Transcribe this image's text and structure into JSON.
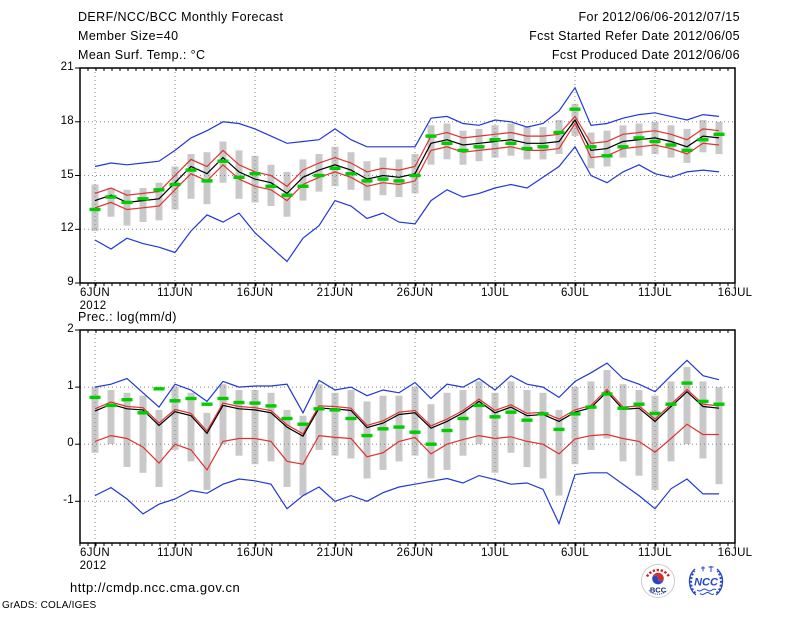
{
  "header": {
    "title": "DERF/NCC/BCC Monthly Forecast",
    "member_size": "Member Size=40",
    "for_range": "For 2012/06/06-2012/07/15",
    "fcst_started": "Fcst Started Refer Date 2012/06/05",
    "fcst_produced": "Fcst Produced Date 2012/06/06"
  },
  "footer": {
    "url": "http://cmdp.ncc.cma.gov.cn",
    "grads_credit": "GrADS: COLA/IGES",
    "logos": {
      "bcc": "BCC",
      "ncc": "NCC"
    }
  },
  "colors": {
    "mean_line": "#000000",
    "spread_line": "#e03232",
    "extreme_line": "#2138d6",
    "obs_dash": "#00cc00",
    "member_bar": "#c9c9c9",
    "grid_dots": "#888888",
    "logo_red": "#cc2222",
    "logo_blue": "#2747c4",
    "logo_navy": "#15267b"
  },
  "chart_data": [
    {
      "type": "line",
      "name": "surface-temperature",
      "title": "Mean Surf. Temp.: °C",
      "x_tick_labels": [
        "6JUN",
        "11JUN",
        "16JUN",
        "21JUN",
        "26JUN",
        "1JUL",
        "6JUL",
        "11JUL",
        "16JUL"
      ],
      "x_year_label": "2012",
      "ytick_values": [
        21,
        18,
        15,
        12,
        9
      ],
      "ytick_labels": [
        "21",
        "18",
        "15",
        "12",
        "9"
      ],
      "ylim": [
        9,
        21
      ],
      "grid": "dotted",
      "legend": "none",
      "dates": [
        "6JUN",
        "7JUN",
        "8JUN",
        "9JUN",
        "10JUN",
        "11JUN",
        "12JUN",
        "13JUN",
        "14JUN",
        "15JUN",
        "16JUN",
        "17JUN",
        "18JUN",
        "19JUN",
        "20JUN",
        "21JUN",
        "22JUN",
        "23JUN",
        "24JUN",
        "25JUN",
        "26JUN",
        "27JUN",
        "28JUN",
        "29JUN",
        "30JUN",
        "1JUL",
        "2JUL",
        "3JUL",
        "4JUL",
        "5JUL",
        "6JUL",
        "7JUL",
        "8JUL",
        "9JUL",
        "10JUL",
        "11JUL",
        "12JUL",
        "13JUL",
        "14JUL",
        "15JUL"
      ],
      "series": [
        {
          "name": "ensemble-max",
          "color": "blue",
          "values": [
            15.5,
            15.7,
            15.6,
            15.7,
            15.8,
            16.4,
            17.1,
            17.5,
            18.0,
            17.9,
            17.6,
            17.2,
            16.8,
            16.9,
            17.0,
            17.6,
            17.0,
            16.6,
            16.6,
            16.6,
            16.6,
            18.2,
            18.3,
            17.9,
            17.8,
            18.1,
            18.0,
            17.7,
            17.9,
            18.6,
            19.9,
            17.8,
            17.9,
            18.2,
            18.4,
            18.5,
            18.3,
            18.1,
            18.4,
            18.3
          ]
        },
        {
          "name": "ensemble-min",
          "color": "blue",
          "values": [
            11.4,
            10.9,
            11.5,
            11.2,
            11.0,
            10.7,
            11.9,
            12.8,
            12.4,
            12.9,
            11.8,
            11.0,
            10.2,
            11.5,
            12.2,
            13.6,
            13.3,
            12.6,
            12.9,
            12.4,
            12.3,
            13.6,
            14.2,
            13.8,
            14.0,
            14.3,
            14.5,
            14.3,
            14.9,
            15.5,
            16.6,
            15.0,
            14.6,
            15.2,
            15.6,
            15.1,
            14.9,
            15.2,
            15.3,
            15.2
          ]
        },
        {
          "name": "upper-spread",
          "color": "red",
          "values": [
            14.0,
            14.3,
            13.9,
            14.0,
            14.1,
            15.0,
            15.9,
            15.5,
            16.4,
            15.6,
            15.2,
            15.0,
            14.4,
            15.3,
            15.7,
            16.0,
            15.7,
            15.2,
            15.4,
            15.3,
            15.5,
            17.2,
            17.4,
            17.1,
            17.2,
            17.3,
            17.4,
            17.2,
            17.2,
            17.3,
            18.3,
            16.8,
            16.9,
            17.3,
            17.4,
            17.5,
            17.3,
            17.0,
            17.6,
            17.5
          ]
        },
        {
          "name": "lower-spread",
          "color": "red",
          "values": [
            13.2,
            13.5,
            13.1,
            13.2,
            13.3,
            14.2,
            15.1,
            14.7,
            15.6,
            14.8,
            14.4,
            14.2,
            13.6,
            14.5,
            14.9,
            15.2,
            14.9,
            14.4,
            14.6,
            14.5,
            14.7,
            16.4,
            16.6,
            16.3,
            16.4,
            16.5,
            16.6,
            16.4,
            16.4,
            16.5,
            17.9,
            16.0,
            16.1,
            16.5,
            16.6,
            16.7,
            16.5,
            16.2,
            16.8,
            16.7
          ]
        },
        {
          "name": "ensemble-mean",
          "color": "black",
          "values": [
            13.6,
            13.9,
            13.5,
            13.6,
            13.7,
            14.6,
            15.5,
            15.1,
            16.0,
            15.2,
            14.8,
            14.6,
            14.0,
            14.9,
            15.3,
            15.6,
            15.3,
            14.8,
            15.0,
            14.9,
            15.1,
            16.8,
            17.0,
            16.7,
            16.8,
            16.9,
            17.0,
            16.8,
            16.8,
            16.9,
            18.1,
            16.4,
            16.5,
            16.9,
            17.0,
            17.1,
            16.9,
            16.6,
            17.2,
            17.1
          ]
        },
        {
          "name": "green-dash-marker",
          "color": "green",
          "style": "dash-markers",
          "values": [
            13.1,
            13.8,
            13.5,
            13.7,
            14.2,
            14.5,
            15.3,
            14.7,
            15.8,
            14.9,
            15.1,
            14.4,
            13.9,
            14.4,
            15.0,
            15.4,
            15.1,
            14.7,
            14.8,
            14.7,
            15.0,
            17.2,
            16.8,
            16.4,
            16.6,
            17.0,
            16.8,
            16.5,
            16.6,
            17.4,
            18.7,
            16.6,
            16.1,
            16.6,
            17.1,
            16.9,
            16.7,
            16.4,
            17.0,
            17.3
          ]
        }
      ],
      "bars": {
        "name": "member-spread",
        "low": [
          11.9,
          12.7,
          12.2,
          12.4,
          12.5,
          13.1,
          13.7,
          13.4,
          14.6,
          13.7,
          13.5,
          13.3,
          12.7,
          13.6,
          14.1,
          14.4,
          14.2,
          13.6,
          13.9,
          13.8,
          14.0,
          15.6,
          15.9,
          15.6,
          15.8,
          16.0,
          16.1,
          15.9,
          15.9,
          16.2,
          17.2,
          15.4,
          15.5,
          16.0,
          16.1,
          16.2,
          16.0,
          15.7,
          16.3,
          16.2
        ],
        "high": [
          14.5,
          14.3,
          14.2,
          14.3,
          14.6,
          15.5,
          16.2,
          16.3,
          16.9,
          16.4,
          16.1,
          15.6,
          15.2,
          15.9,
          16.2,
          16.6,
          16.3,
          15.8,
          16.0,
          15.9,
          16.2,
          17.8,
          17.9,
          17.5,
          17.6,
          17.8,
          17.9,
          17.7,
          17.7,
          18.1,
          19.0,
          17.4,
          17.5,
          17.8,
          17.9,
          18.0,
          17.8,
          17.6,
          18.1,
          18.0
        ]
      }
    },
    {
      "type": "line",
      "name": "precipitation",
      "title": "Prec.: log(mm/d)",
      "x_tick_labels": [
        "6JUN",
        "11JUN",
        "16JUN",
        "21JUN",
        "26JUN",
        "1JUL",
        "6JUL",
        "11JUL",
        "16JUL"
      ],
      "x_year_label": "2012",
      "ytick_values": [
        2,
        1,
        0,
        -1
      ],
      "ytick_labels": [
        "2",
        "1",
        "0",
        "-1"
      ],
      "ylim": [
        -1.73,
        2
      ],
      "grid": "dotted",
      "legend": "none",
      "dates": [
        "6JUN",
        "7JUN",
        "8JUN",
        "9JUN",
        "10JUN",
        "11JUN",
        "12JUN",
        "13JUN",
        "14JUN",
        "15JUN",
        "16JUN",
        "17JUN",
        "18JUN",
        "19JUN",
        "20JUN",
        "21JUN",
        "22JUN",
        "23JUN",
        "24JUN",
        "25JUN",
        "26JUN",
        "27JUN",
        "28JUN",
        "29JUN",
        "30JUN",
        "1JUL",
        "2JUL",
        "3JUL",
        "4JUL",
        "5JUL",
        "6JUL",
        "7JUL",
        "8JUL",
        "9JUL",
        "10JUL",
        "11JUL",
        "12JUL",
        "13JUL",
        "14JUL",
        "15JUL"
      ],
      "series": [
        {
          "name": "ensemble-max",
          "color": "blue",
          "values": [
            1.0,
            1.05,
            1.15,
            0.9,
            0.65,
            1.05,
            0.95,
            0.75,
            1.1,
            1.0,
            1.02,
            1.02,
            1.05,
            0.55,
            1.12,
            0.95,
            1.0,
            0.85,
            0.95,
            0.9,
            1.08,
            0.8,
            1.05,
            1.0,
            1.15,
            0.95,
            1.2,
            1.05,
            1.0,
            0.82,
            1.1,
            1.25,
            1.42,
            1.15,
            1.05,
            0.92,
            1.2,
            1.47,
            1.2,
            1.13
          ]
        },
        {
          "name": "ensemble-min",
          "color": "blue",
          "values": [
            -0.9,
            -0.76,
            -0.96,
            -1.22,
            -1.05,
            -0.96,
            -0.81,
            -0.86,
            -0.7,
            -0.61,
            -0.64,
            -0.7,
            -1.13,
            -0.9,
            -0.75,
            -1.0,
            -0.9,
            -1.0,
            -0.85,
            -0.75,
            -0.7,
            -0.65,
            -0.6,
            -0.68,
            -0.55,
            -0.62,
            -0.7,
            -0.68,
            -0.79,
            -1.39,
            -0.53,
            -0.5,
            -0.5,
            -0.7,
            -0.9,
            -1.13,
            -0.78,
            -0.61,
            -0.87,
            -0.87
          ]
        },
        {
          "name": "upper-spread",
          "color": "red",
          "values": [
            0.62,
            0.74,
            0.66,
            0.64,
            0.37,
            0.61,
            0.54,
            0.23,
            0.72,
            0.66,
            0.64,
            0.59,
            0.34,
            0.18,
            0.67,
            0.66,
            0.63,
            0.33,
            0.41,
            0.56,
            0.59,
            0.32,
            0.44,
            0.59,
            0.79,
            0.59,
            0.69,
            0.54,
            0.56,
            0.44,
            0.6,
            0.68,
            0.96,
            0.65,
            0.67,
            0.44,
            0.7,
            0.96,
            0.7,
            0.67
          ]
        },
        {
          "name": "lower-spread",
          "color": "red",
          "values": [
            0.05,
            0.15,
            0.1,
            -0.05,
            -0.33,
            0.0,
            -0.1,
            -0.45,
            0.05,
            0.1,
            0.1,
            0.05,
            -0.3,
            -0.35,
            0.15,
            0.12,
            0.1,
            -0.22,
            -0.15,
            0.05,
            0.12,
            -0.17,
            0.0,
            0.08,
            0.15,
            0.1,
            0.13,
            0.05,
            0.0,
            -0.17,
            0.09,
            0.15,
            0.17,
            0.1,
            0.05,
            -0.14,
            0.1,
            0.35,
            0.17,
            0.17
          ]
        },
        {
          "name": "ensemble-mean",
          "color": "black",
          "values": [
            0.58,
            0.7,
            0.62,
            0.6,
            0.33,
            0.57,
            0.5,
            0.19,
            0.68,
            0.62,
            0.6,
            0.55,
            0.3,
            0.14,
            0.63,
            0.62,
            0.59,
            0.29,
            0.37,
            0.52,
            0.55,
            0.28,
            0.4,
            0.55,
            0.75,
            0.55,
            0.65,
            0.5,
            0.52,
            0.4,
            0.56,
            0.64,
            0.92,
            0.61,
            0.63,
            0.4,
            0.66,
            0.92,
            0.66,
            0.63
          ]
        },
        {
          "name": "green-dash-marker",
          "color": "green",
          "style": "dash-markers",
          "values": [
            0.82,
            0.68,
            0.78,
            0.55,
            0.97,
            0.76,
            0.8,
            0.7,
            0.8,
            0.73,
            0.72,
            0.67,
            0.45,
            0.35,
            0.62,
            0.6,
            0.45,
            0.15,
            0.27,
            0.3,
            0.21,
            0.0,
            0.24,
            0.45,
            0.68,
            0.48,
            0.56,
            0.42,
            0.53,
            0.26,
            0.53,
            0.65,
            0.88,
            0.63,
            0.7,
            0.54,
            0.7,
            1.07,
            0.75,
            0.7
          ]
        }
      ],
      "bars": {
        "name": "member-spread",
        "low": [
          -0.15,
          0.0,
          -0.4,
          -0.5,
          -0.75,
          -0.1,
          -0.3,
          -0.8,
          0.0,
          -0.2,
          -0.35,
          -0.3,
          -0.75,
          -0.9,
          -0.1,
          -0.2,
          -0.25,
          -0.6,
          -0.45,
          -0.3,
          -0.2,
          -0.6,
          -0.45,
          -0.2,
          0.0,
          -0.5,
          -0.15,
          -0.4,
          -0.6,
          -0.9,
          -0.35,
          -0.1,
          0.1,
          -0.3,
          -0.55,
          -0.8,
          -0.3,
          0.0,
          -0.25,
          -0.7
        ],
        "high": [
          1.0,
          0.95,
          0.9,
          0.85,
          0.6,
          1.0,
          0.9,
          0.55,
          1.05,
          0.95,
          0.95,
          0.9,
          0.6,
          0.5,
          1.05,
          0.9,
          0.95,
          0.75,
          0.85,
          0.85,
          1.0,
          0.7,
          0.9,
          0.95,
          1.1,
          0.9,
          1.1,
          0.95,
          0.9,
          0.6,
          1.0,
          1.1,
          1.3,
          1.05,
          0.95,
          0.85,
          1.1,
          1.35,
          1.1,
          1.0
        ]
      }
    }
  ]
}
